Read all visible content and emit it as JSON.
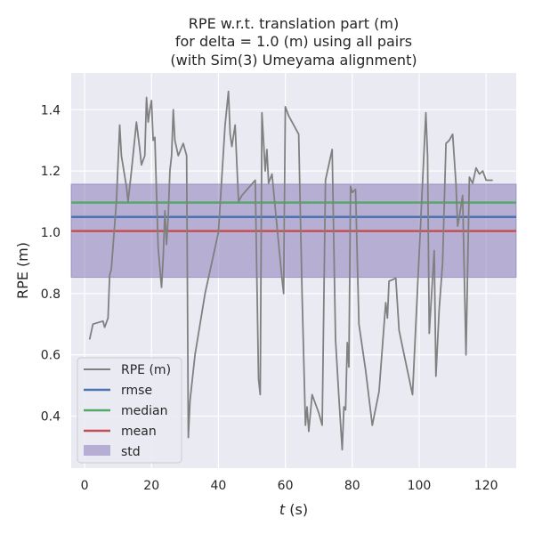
{
  "chart_data": {
    "type": "line",
    "title_lines": [
      "RPE w.r.t. translation part (m)",
      "for delta = 1.0 (m) using all pairs",
      "(with Sim(3) Umeyama alignment)"
    ],
    "xlabel_var": "t",
    "xlabel_unit": " (s)",
    "ylabel": "RPE (m)",
    "xlim": [
      -4,
      129
    ],
    "ylim": [
      0.23,
      1.52
    ],
    "x_ticks": [
      0,
      20,
      40,
      60,
      80,
      100,
      120
    ],
    "x_tick_labels": [
      "0",
      "20",
      "40",
      "60",
      "80",
      "100",
      "120"
    ],
    "y_ticks": [
      0.4,
      0.6,
      0.8,
      1.0,
      1.2,
      1.4
    ],
    "y_tick_labels": [
      "0.4",
      "0.6",
      "0.8",
      "1.0",
      "1.2",
      "1.4"
    ],
    "grid": true,
    "legend_placement": "lower-left",
    "colors": {
      "background": "#eaeaf2",
      "grid": "#ffffff",
      "rpe": "#808080",
      "rmse": "#4c72b0",
      "median": "#55a868",
      "mean": "#c44e52",
      "std_fill": "#8172b3"
    },
    "series": [
      {
        "name": "RPE (m)",
        "kind": "line",
        "x": [
          1.5,
          2.5,
          5.5,
          6,
          7,
          7.5,
          8,
          9.5,
          10.5,
          11,
          12.5,
          13,
          14,
          15.5,
          16.5,
          17,
          18,
          18.5,
          19,
          19.5,
          20,
          20.5,
          21,
          22,
          23,
          23.5,
          24,
          24.5,
          25,
          25.5,
          26,
          26.5,
          27,
          28,
          29.5,
          30.5,
          31,
          31.5,
          33,
          36,
          40,
          42,
          43,
          43.5,
          44,
          45,
          46,
          47,
          51,
          52,
          52.5,
          53,
          54,
          54.5,
          55,
          56,
          59,
          59.5,
          60,
          61,
          64,
          65,
          66,
          66.5,
          67,
          68,
          70,
          71,
          72,
          74,
          75,
          76,
          77,
          77.5,
          78,
          78.5,
          79,
          79.5,
          80,
          81,
          82,
          84,
          86,
          88,
          90,
          90.5,
          91,
          93,
          94,
          95.5,
          98,
          102,
          102.5,
          103,
          104.5,
          105,
          106,
          107,
          108,
          109,
          110,
          111,
          111.5,
          112,
          113,
          114,
          115,
          115.5,
          116,
          117,
          118,
          119,
          120,
          122
        ],
        "y": [
          0.65,
          0.7,
          0.71,
          0.69,
          0.72,
          0.86,
          0.88,
          1.1,
          1.35,
          1.25,
          1.15,
          1.1,
          1.2,
          1.36,
          1.27,
          1.22,
          1.25,
          1.44,
          1.36,
          1.4,
          1.43,
          1.3,
          1.31,
          0.95,
          0.82,
          0.92,
          1.07,
          0.96,
          1.05,
          1.2,
          1.25,
          1.4,
          1.3,
          1.25,
          1.29,
          1.25,
          0.33,
          0.45,
          0.6,
          0.8,
          1.0,
          1.35,
          1.46,
          1.32,
          1.28,
          1.35,
          1.1,
          1.12,
          1.17,
          0.52,
          0.47,
          1.39,
          1.2,
          1.27,
          1.16,
          1.19,
          0.85,
          0.8,
          1.41,
          1.38,
          1.32,
          0.8,
          0.37,
          0.43,
          0.35,
          0.47,
          0.41,
          0.37,
          1.17,
          1.27,
          0.65,
          0.46,
          0.29,
          0.43,
          0.42,
          0.64,
          0.56,
          1.15,
          1.13,
          1.14,
          0.7,
          0.55,
          0.37,
          0.48,
          0.77,
          0.72,
          0.84,
          0.85,
          0.68,
          0.6,
          0.47,
          1.39,
          1.25,
          0.67,
          0.94,
          0.53,
          0.75,
          0.9,
          1.29,
          1.3,
          1.32,
          1.16,
          1.02,
          1.05,
          1.12,
          0.6,
          1.18,
          1.17,
          1.16,
          1.21,
          1.19,
          1.2,
          1.17,
          1.17
        ]
      },
      {
        "name": "rmse",
        "kind": "hline",
        "value": 1.05
      },
      {
        "name": "median",
        "kind": "hline",
        "value": 1.097
      },
      {
        "name": "mean",
        "kind": "hline",
        "value": 1.004
      },
      {
        "name": "std",
        "kind": "band",
        "value": [
          0.853,
          1.157
        ]
      }
    ]
  }
}
